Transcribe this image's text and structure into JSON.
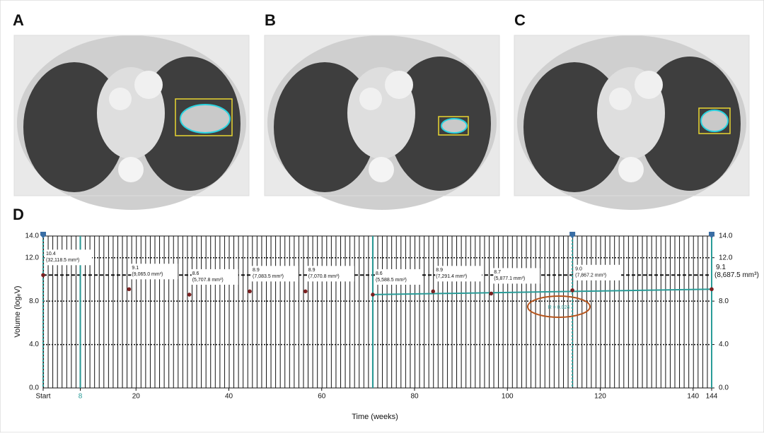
{
  "panels": [
    {
      "label": "A"
    },
    {
      "label": "B"
    },
    {
      "label": "C"
    }
  ],
  "chart_data": {
    "type": "scatter",
    "panel_label": "D",
    "x_label": "Time (weeks)",
    "y_label": "Volume (logₑV)",
    "xlim": [
      0,
      144
    ],
    "ylim": [
      0,
      14
    ],
    "xticks": [
      {
        "value": 0,
        "label": "Start"
      },
      8,
      20,
      40,
      60,
      80,
      100,
      120,
      140,
      144
    ],
    "yticks": [
      {
        "value": 0,
        "label": "0.0"
      },
      {
        "value": 4,
        "label": "4.0"
      },
      {
        "value": 8,
        "label": "8.0"
      },
      {
        "value": 12,
        "label": "12.0"
      },
      {
        "value": 14,
        "label": "14.0"
      }
    ],
    "y2lim": [
      0,
      14
    ],
    "y2ticks": [
      {
        "value": 0,
        "label": "0.0"
      },
      {
        "value": 4,
        "label": "4.0"
      },
      {
        "value": 8,
        "label": "8.0"
      },
      {
        "value": 12,
        "label": "12.0"
      },
      {
        "value": 14,
        "label": "14.0"
      }
    ],
    "series": [
      {
        "color": "#7b2020",
        "x": [
          0,
          18.5,
          31.5,
          44.5,
          56.5,
          71,
          84,
          96.5,
          114,
          144
        ],
        "values": [
          10.4,
          9.1,
          8.6,
          8.9,
          8.9,
          8.6,
          8.9,
          8.7,
          9.0,
          9.1
        ],
        "value_labels": [
          "10.4",
          "9.1",
          "8.6",
          "8.9",
          "8.9",
          "8.6",
          "8.9",
          "8.7",
          "9.0",
          "9.1"
        ],
        "volume_labels": [
          "(32,118.5 mm³)",
          "(9,065.0 mm³)",
          "(5,707.8 mm³)",
          "(7,083.5 mm³)",
          "(7,070.8 mm³)",
          "(5,588.5 mm³)",
          "(7,291.4 mm³)",
          "(5,877.1 mm³)",
          "(7,867.2 mm³)",
          "(8,687.5 mm³)"
        ]
      }
    ],
    "trend": {
      "color": "#2a9c98",
      "x": [
        71,
        144
      ],
      "values": [
        8.6,
        9.1
      ],
      "annotation": "R = 0.024",
      "annotation_color": "#b5541c"
    },
    "teal_lines": [
      8,
      71,
      144
    ],
    "marker_lines": [
      0,
      114,
      144
    ],
    "marker_color": "#3a6ea5"
  }
}
